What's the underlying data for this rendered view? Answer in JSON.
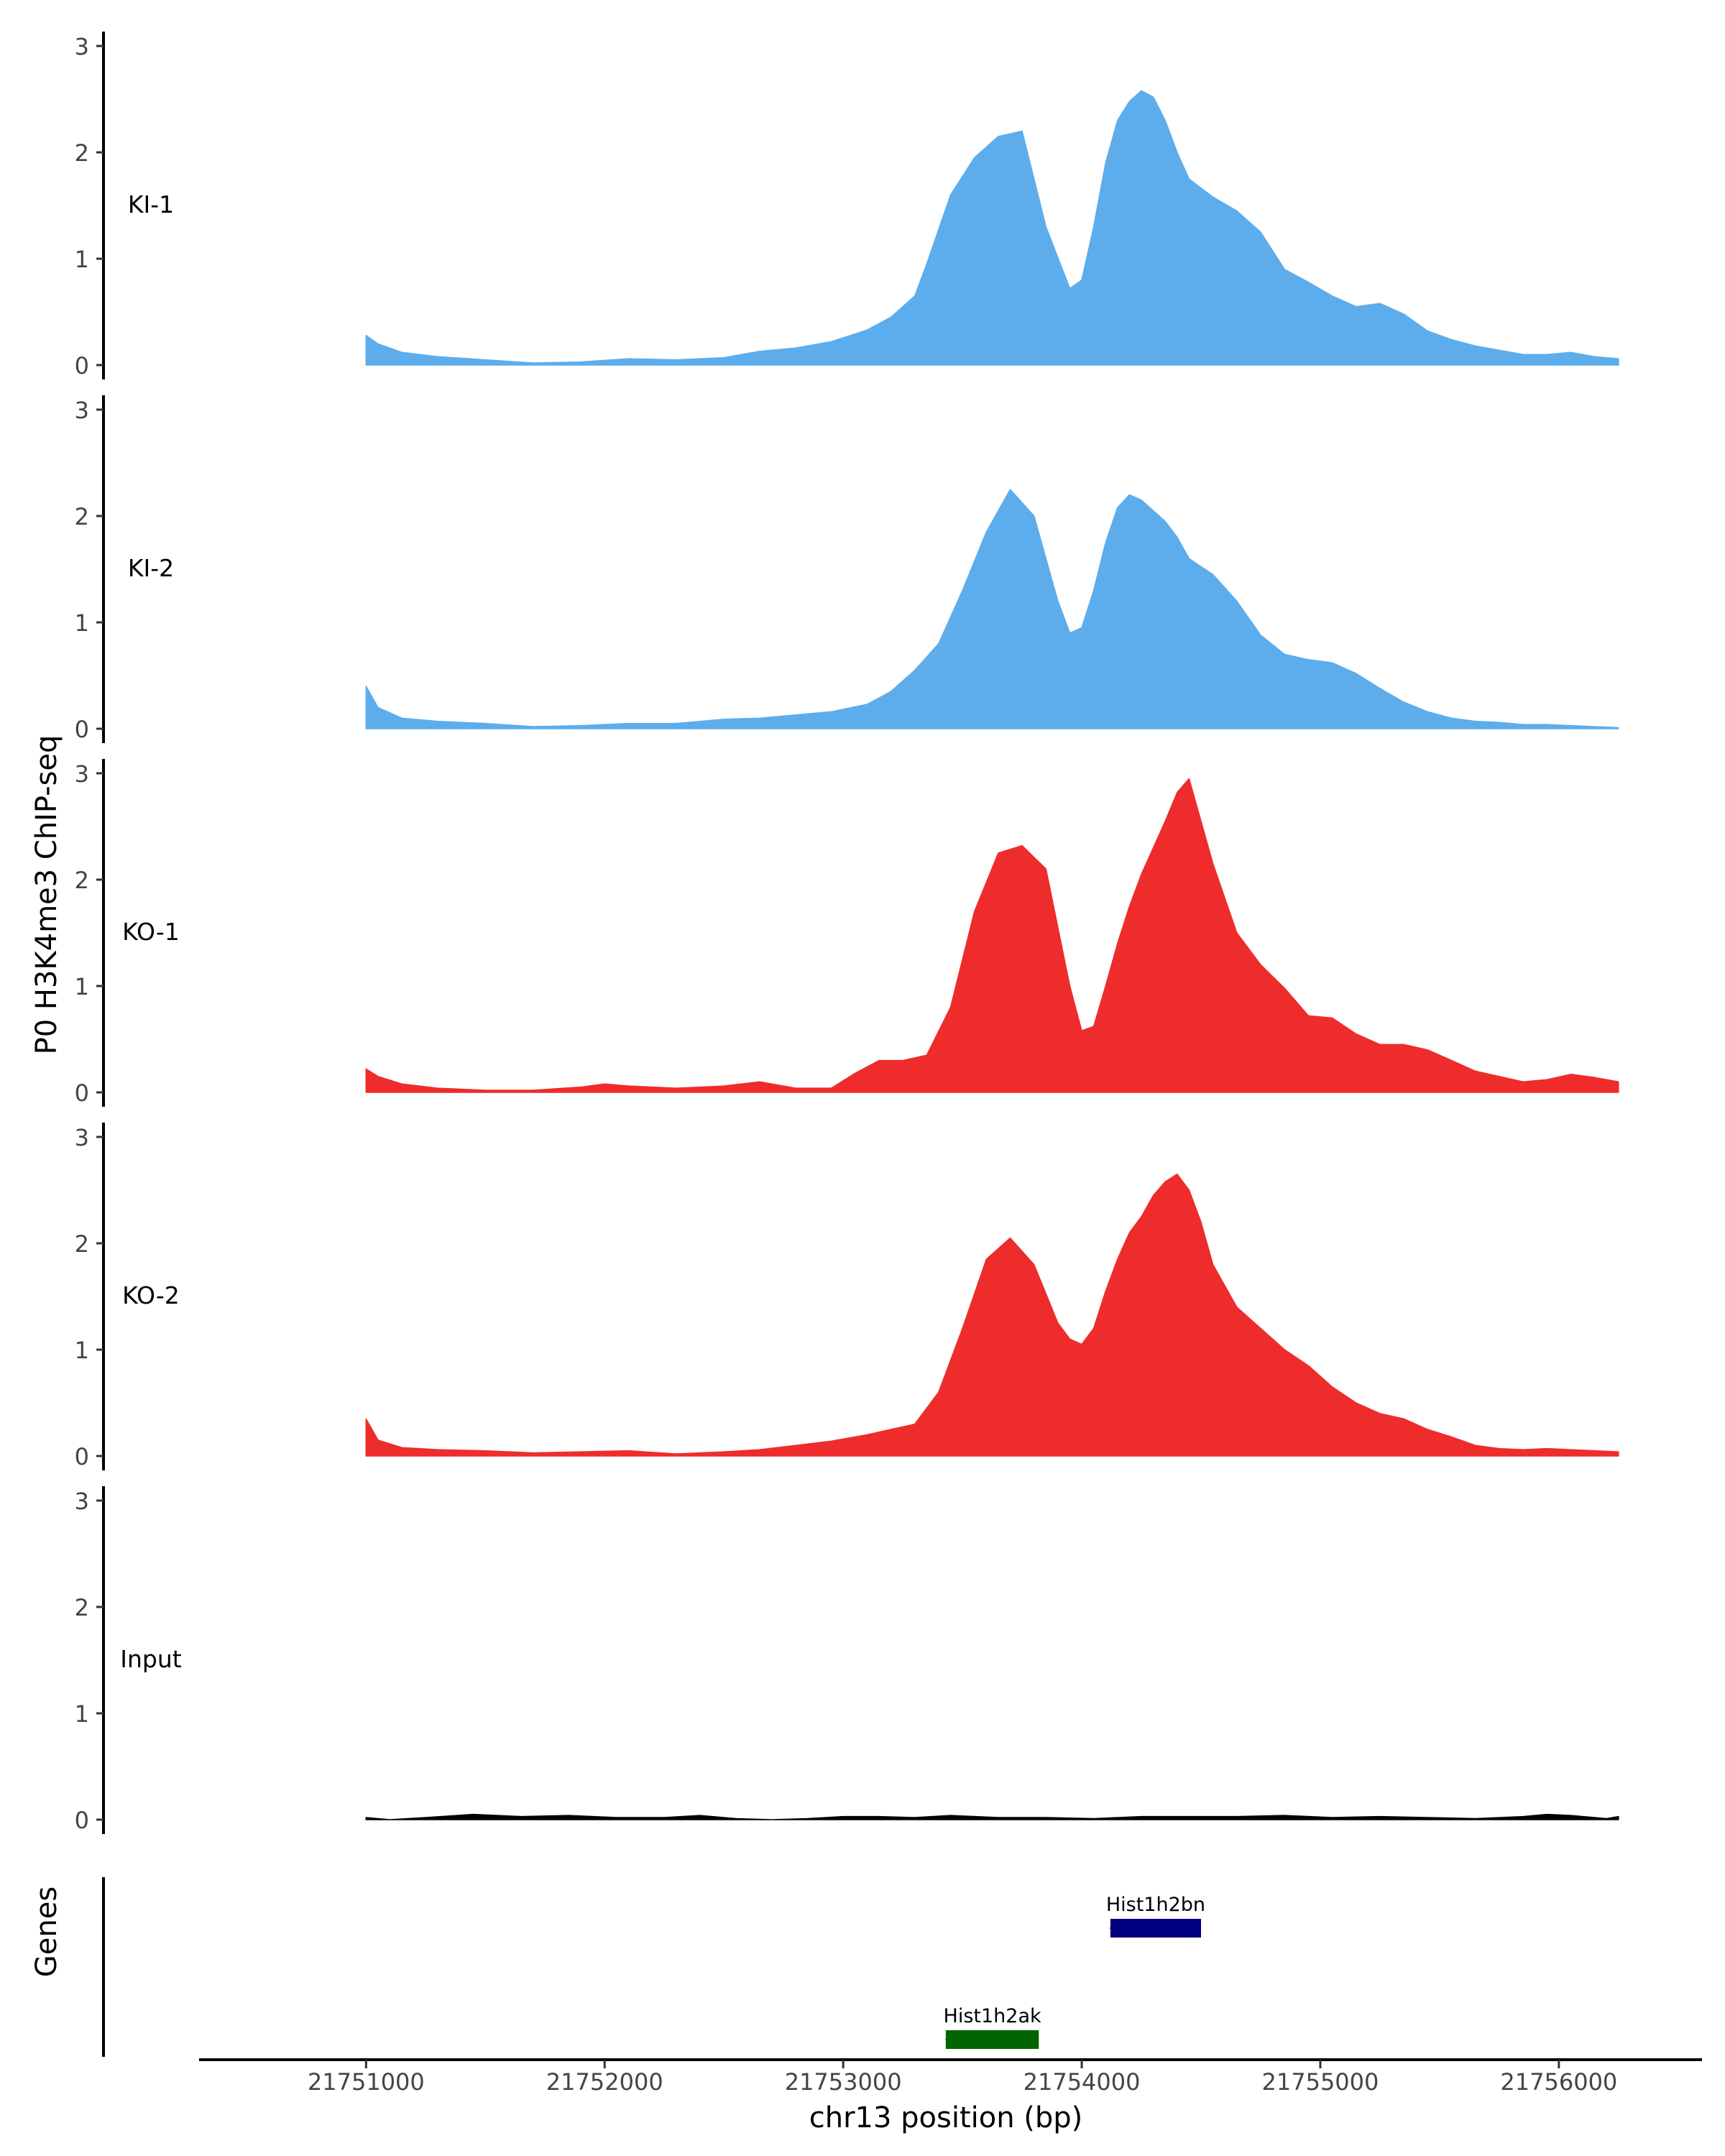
{
  "chart_data": {
    "type": "area",
    "title": "",
    "ylabel": "P0 H3K4me3 ChIP-seq",
    "xlabel": "chr13 position (bp)",
    "xlim": [
      21750300,
      21756600
    ],
    "ylim": [
      0,
      3
    ],
    "yticks": [
      0,
      1,
      2,
      3
    ],
    "xticks": [
      21751000,
      21752000,
      21753000,
      21754000,
      21755000,
      21756000
    ],
    "xtick_labels": [
      "21751000",
      "21752000",
      "21753000",
      "21754000",
      "21755000",
      "21756000"
    ],
    "tracks": [
      {
        "name": "KI-1",
        "color": "#5DADEC",
        "x": [
          21751000,
          21751050,
          21751150,
          21751300,
          21751500,
          21751700,
          21751900,
          21752100,
          21752300,
          21752500,
          21752650,
          21752800,
          21752950,
          21753100,
          21753200,
          21753300,
          21753350,
          21753450,
          21753550,
          21753650,
          21753750,
          21753850,
          21753950,
          21754000,
          21754050,
          21754100,
          21754150,
          21754200,
          21754250,
          21754300,
          21754350,
          21754400,
          21754450,
          21754550,
          21754650,
          21754750,
          21754850,
          21754950,
          21755050,
          21755150,
          21755250,
          21755350,
          21755450,
          21755550,
          21755650,
          21755750,
          21755850,
          21755950,
          21756050,
          21756150,
          21756250
        ],
        "values": [
          0.28,
          0.2,
          0.12,
          0.08,
          0.05,
          0.02,
          0.03,
          0.06,
          0.05,
          0.07,
          0.13,
          0.16,
          0.22,
          0.33,
          0.45,
          0.65,
          0.95,
          1.6,
          1.95,
          2.15,
          2.2,
          1.3,
          0.72,
          0.8,
          1.3,
          1.9,
          2.3,
          2.48,
          2.58,
          2.52,
          2.3,
          2.0,
          1.75,
          1.58,
          1.45,
          1.25,
          0.9,
          0.78,
          0.65,
          0.55,
          0.58,
          0.48,
          0.32,
          0.24,
          0.18,
          0.14,
          0.1,
          0.1,
          0.12,
          0.08,
          0.06
        ]
      },
      {
        "name": "KI-2",
        "color": "#5DADEC",
        "x": [
          21751000,
          21751050,
          21751150,
          21751300,
          21751500,
          21751700,
          21751900,
          21752100,
          21752300,
          21752500,
          21752650,
          21752800,
          21752950,
          21753100,
          21753200,
          21753300,
          21753400,
          21753500,
          21753600,
          21753700,
          21753800,
          21753900,
          21753950,
          21754000,
          21754050,
          21754100,
          21754150,
          21754200,
          21754250,
          21754300,
          21754350,
          21754400,
          21754450,
          21754550,
          21754650,
          21754750,
          21754850,
          21754950,
          21755050,
          21755150,
          21755250,
          21755350,
          21755450,
          21755550,
          21755650,
          21755750,
          21755850,
          21755950,
          21756050,
          21756150,
          21756250
        ],
        "values": [
          0.4,
          0.2,
          0.1,
          0.07,
          0.05,
          0.02,
          0.03,
          0.05,
          0.05,
          0.09,
          0.1,
          0.13,
          0.16,
          0.23,
          0.35,
          0.55,
          0.8,
          1.3,
          1.85,
          2.25,
          2.0,
          1.2,
          0.9,
          0.95,
          1.3,
          1.75,
          2.08,
          2.2,
          2.15,
          2.05,
          1.95,
          1.8,
          1.6,
          1.45,
          1.2,
          0.88,
          0.7,
          0.65,
          0.62,
          0.52,
          0.38,
          0.25,
          0.16,
          0.1,
          0.07,
          0.06,
          0.04,
          0.04,
          0.03,
          0.02,
          0.01
        ]
      },
      {
        "name": "KO-1",
        "color": "#EE2C2C",
        "x": [
          21751000,
          21751050,
          21751150,
          21751300,
          21751500,
          21751700,
          21751900,
          21752000,
          21752100,
          21752300,
          21752500,
          21752650,
          21752800,
          21752950,
          21753050,
          21753150,
          21753250,
          21753350,
          21753450,
          21753550,
          21753650,
          21753750,
          21753850,
          21753950,
          21754000,
          21754050,
          21754100,
          21754150,
          21754200,
          21754250,
          21754300,
          21754350,
          21754400,
          21754450,
          21754550,
          21754650,
          21754750,
          21754850,
          21754950,
          21755050,
          21755150,
          21755250,
          21755350,
          21755450,
          21755550,
          21755650,
          21755750,
          21755850,
          21755950,
          21756050,
          21756150,
          21756250
        ],
        "values": [
          0.22,
          0.15,
          0.08,
          0.04,
          0.02,
          0.02,
          0.05,
          0.08,
          0.06,
          0.04,
          0.06,
          0.1,
          0.04,
          0.04,
          0.18,
          0.3,
          0.3,
          0.35,
          0.8,
          1.7,
          2.25,
          2.32,
          2.1,
          1.0,
          0.58,
          0.62,
          1.0,
          1.4,
          1.75,
          2.05,
          2.3,
          2.55,
          2.82,
          2.95,
          2.15,
          1.5,
          1.2,
          0.98,
          0.72,
          0.7,
          0.55,
          0.45,
          0.45,
          0.4,
          0.3,
          0.2,
          0.15,
          0.1,
          0.12,
          0.17,
          0.14,
          0.1
        ]
      },
      {
        "name": "KO-2",
        "color": "#EE2C2C",
        "x": [
          21751000,
          21751050,
          21751150,
          21751300,
          21751500,
          21751700,
          21751900,
          21752100,
          21752300,
          21752500,
          21752650,
          21752800,
          21752950,
          21753100,
          21753200,
          21753300,
          21753400,
          21753500,
          21753600,
          21753700,
          21753800,
          21753900,
          21753950,
          21754000,
          21754050,
          21754100,
          21754150,
          21754200,
          21754250,
          21754300,
          21754350,
          21754400,
          21754450,
          21754500,
          21754550,
          21754650,
          21754750,
          21754850,
          21754950,
          21755050,
          21755150,
          21755250,
          21755350,
          21755450,
          21755550,
          21755650,
          21755750,
          21755850,
          21755950,
          21756050,
          21756150,
          21756250
        ],
        "values": [
          0.35,
          0.15,
          0.08,
          0.06,
          0.05,
          0.03,
          0.04,
          0.05,
          0.02,
          0.04,
          0.06,
          0.1,
          0.14,
          0.2,
          0.25,
          0.3,
          0.6,
          1.2,
          1.85,
          2.05,
          1.8,
          1.25,
          1.1,
          1.05,
          1.2,
          1.55,
          1.85,
          2.1,
          2.25,
          2.45,
          2.58,
          2.65,
          2.5,
          2.2,
          1.8,
          1.4,
          1.2,
          1.0,
          0.85,
          0.65,
          0.5,
          0.4,
          0.35,
          0.25,
          0.18,
          0.1,
          0.07,
          0.06,
          0.07,
          0.06,
          0.05,
          0.04
        ]
      },
      {
        "name": "Input",
        "color": "#000000",
        "x": [
          21751000,
          21751100,
          21751250,
          21751450,
          21751650,
          21751850,
          21752050,
          21752250,
          21752400,
          21752550,
          21752700,
          21752850,
          21753000,
          21753150,
          21753300,
          21753450,
          21753650,
          21753850,
          21754050,
          21754250,
          21754450,
          21754650,
          21754850,
          21755050,
          21755250,
          21755450,
          21755650,
          21755850,
          21755950,
          21756050,
          21756150,
          21756200,
          21756250
        ],
        "values": [
          0.02,
          0.0,
          0.02,
          0.05,
          0.03,
          0.04,
          0.02,
          0.02,
          0.04,
          0.01,
          0.0,
          0.01,
          0.03,
          0.03,
          0.02,
          0.04,
          0.02,
          0.02,
          0.01,
          0.03,
          0.03,
          0.03,
          0.04,
          0.02,
          0.03,
          0.02,
          0.01,
          0.03,
          0.05,
          0.04,
          0.02,
          0.01,
          0.03
        ]
      }
    ],
    "genes_panel": {
      "ylabel": "Genes",
      "genes": [
        {
          "name": "Hist1h2bn",
          "start": 21754120,
          "end": 21754500,
          "color": "#000080",
          "row": 1
        },
        {
          "name": "Hist1h2ak",
          "start": 21753430,
          "end": 21753820,
          "color": "#006400",
          "row": 2
        }
      ]
    }
  }
}
